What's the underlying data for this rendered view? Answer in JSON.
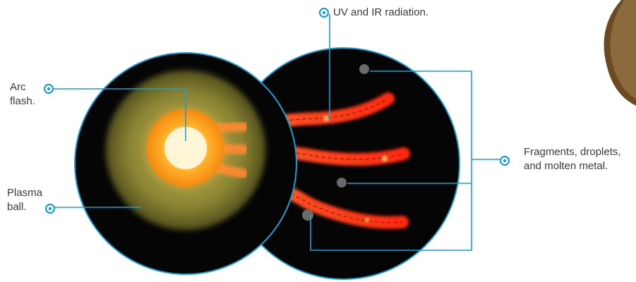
{
  "labels": {
    "uv_ir": "UV and IR radiation.",
    "arc_line1": "Arc",
    "arc_line2": "flash.",
    "plasma_line1": "Plasma",
    "plasma_line2": "ball.",
    "fragments_line1": "Fragments, droplets,",
    "fragments_line2": "and molten metal."
  },
  "colors": {
    "callout": "#1a9fd4",
    "background_disc": "#050505",
    "plasma": "#7f7a2a",
    "arc_core": "#ff9a1a",
    "streak": "#ff3a1a"
  }
}
